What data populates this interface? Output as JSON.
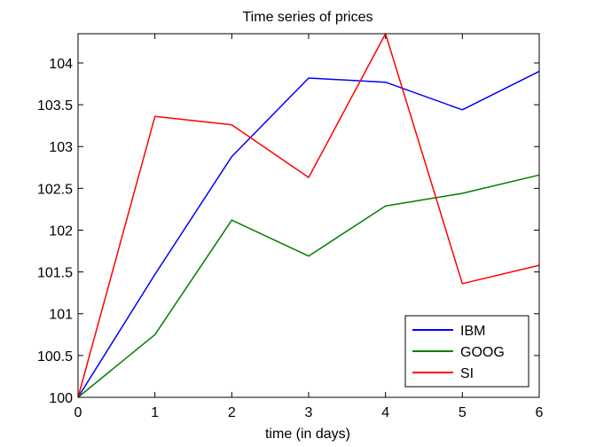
{
  "chart_data": {
    "type": "line",
    "title": "Time series of prices",
    "xlabel": "time (in days)",
    "ylabel": "",
    "x": [
      0,
      1,
      2,
      3,
      4,
      5,
      6
    ],
    "xlim": [
      0,
      6
    ],
    "ylim": [
      100,
      104.35
    ],
    "xticks": [
      0,
      1,
      2,
      3,
      4,
      5,
      6
    ],
    "yticks": [
      100,
      100.5,
      101,
      101.5,
      102,
      102.5,
      103,
      103.5,
      104
    ],
    "grid": false,
    "legend_position": "bottom-right",
    "series": [
      {
        "name": "IBM",
        "color": "#0000ff",
        "values": [
          100,
          101.47,
          102.88,
          103.82,
          103.77,
          103.44,
          103.9
        ]
      },
      {
        "name": "GOOG",
        "color": "#008000",
        "values": [
          100,
          100.75,
          102.12,
          101.69,
          102.29,
          102.44,
          102.66
        ]
      },
      {
        "name": "SI",
        "color": "#ff0000",
        "values": [
          100,
          103.36,
          103.26,
          102.63,
          104.35,
          101.36,
          101.58
        ]
      }
    ]
  }
}
